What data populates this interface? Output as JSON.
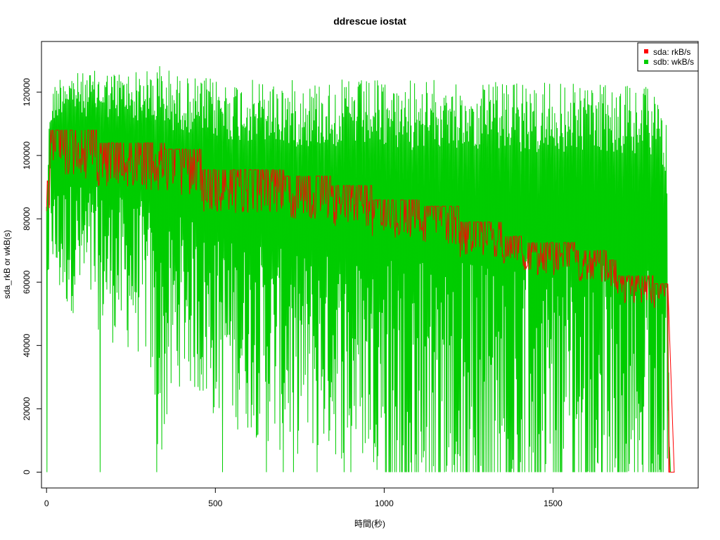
{
  "chart_data": {
    "type": "line",
    "title": "ddrescue iostat",
    "xlabel": "時間(秒)",
    "ylabel": "sda_rkB or wkB(s)",
    "xlim": [
      -15,
      1930
    ],
    "ylim": [
      -5000,
      136000
    ],
    "x_ticks": [
      0,
      500,
      1000,
      1500
    ],
    "x_tick_labels": [
      "0",
      "500",
      "1000",
      "1500"
    ],
    "y_ticks": [
      0,
      20000,
      40000,
      60000,
      80000,
      100000,
      120000
    ],
    "y_tick_labels": [
      "0",
      "20000",
      "40000",
      "60000",
      "80000",
      "100000",
      "120000"
    ],
    "legend_position": "top-right",
    "series": [
      {
        "name": "sdb: wkB/s",
        "color": "#00CD00",
        "pattern": "oscillating",
        "upper_envelope": {
          "x": [
            0,
            10,
            20,
            50,
            100,
            150,
            200,
            300,
            330,
            400,
            600,
            800,
            1000,
            1200,
            1400,
            1600,
            1700,
            1800,
            1835,
            1845
          ],
          "y": [
            95000,
            115000,
            122000,
            128000,
            126000,
            127000,
            127000,
            127000,
            130000,
            125000,
            124000,
            124000,
            124000,
            124000,
            123000,
            123000,
            122000,
            122000,
            115000,
            8000
          ]
        },
        "lower_envelope": {
          "x": [
            0,
            10,
            20,
            50,
            100,
            150,
            200,
            300,
            330,
            400,
            460,
            500,
            600,
            700,
            800,
            900,
            1000,
            1100,
            1200,
            1300,
            1400,
            1500,
            1600,
            1700,
            1800,
            1835,
            1845
          ],
          "y": [
            0,
            80000,
            55000,
            50000,
            50000,
            45000,
            40000,
            35000,
            0,
            30000,
            20000,
            15000,
            12000,
            5000,
            5000,
            3000,
            0,
            0,
            0,
            0,
            0,
            0,
            0,
            0,
            0,
            0,
            0
          ]
        },
        "spikes_to_zero_x": [
          0,
          157,
          326,
          520,
          650,
          700,
          730,
          800,
          880,
          900
        ]
      },
      {
        "name": "sda: rkB/s",
        "color": "#FF0000",
        "pattern": "stepped",
        "steps": [
          {
            "x_start": 0,
            "x_end": 10,
            "y": 92000
          },
          {
            "x_start": 10,
            "x_end": 150,
            "y": 108000
          },
          {
            "x_start": 150,
            "x_end": 315,
            "y": 104000
          },
          {
            "x_start": 315,
            "x_end": 350,
            "y": 104000
          },
          {
            "x_start": 350,
            "x_end": 460,
            "y": 102000
          },
          {
            "x_start": 460,
            "x_end": 705,
            "y": 95500
          },
          {
            "x_start": 705,
            "x_end": 845,
            "y": 93500
          },
          {
            "x_start": 845,
            "x_end": 965,
            "y": 90500
          },
          {
            "x_start": 965,
            "x_end": 1110,
            "y": 86000
          },
          {
            "x_start": 1110,
            "x_end": 1225,
            "y": 84000
          },
          {
            "x_start": 1225,
            "x_end": 1350,
            "y": 79000
          },
          {
            "x_start": 1350,
            "x_end": 1420,
            "y": 74500
          },
          {
            "x_start": 1420,
            "x_end": 1565,
            "y": 72500
          },
          {
            "x_start": 1565,
            "x_end": 1575,
            "y": 70000
          },
          {
            "x_start": 1575,
            "x_end": 1660,
            "y": 70000
          },
          {
            "x_start": 1660,
            "x_end": 1690,
            "y": 67000
          },
          {
            "x_start": 1690,
            "x_end": 1800,
            "y": 62000
          },
          {
            "x_start": 1800,
            "x_end": 1840,
            "y": 59500
          },
          {
            "x_start": 1845,
            "x_end": 1860,
            "y": 0
          }
        ],
        "dip_range_fraction": 0.12
      }
    ]
  }
}
